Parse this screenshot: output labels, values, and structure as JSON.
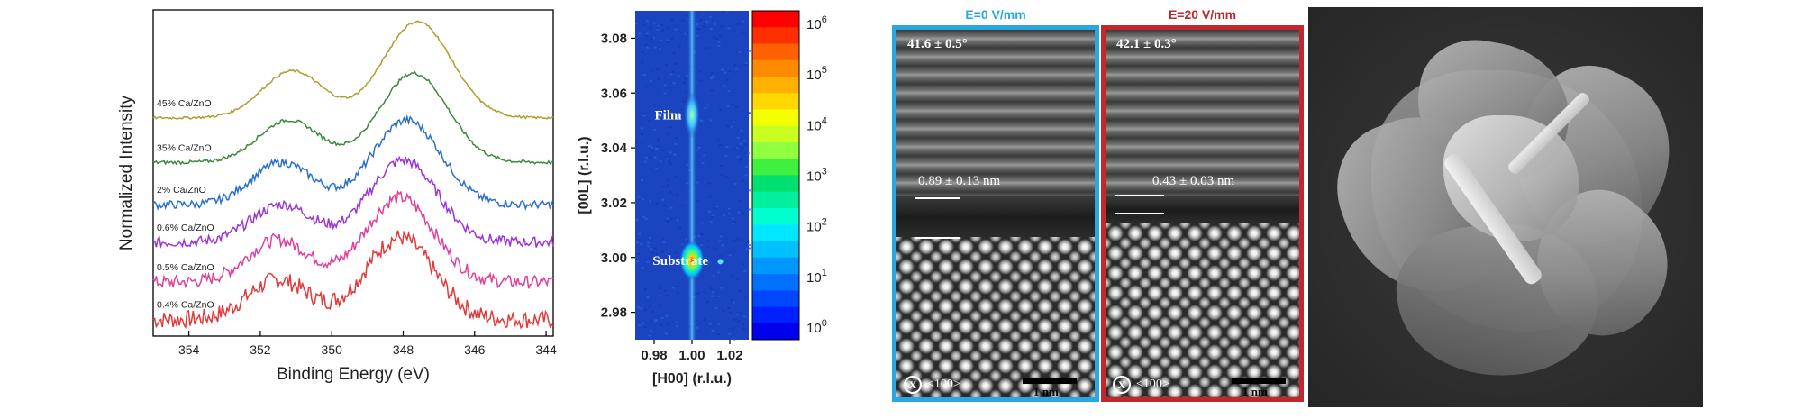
{
  "chart_data": [
    {
      "type": "line",
      "xlabel": "Binding Energy (eV)",
      "ylabel": "Normalized Intensity",
      "xlim": [
        355,
        343.8
      ],
      "x_reversed": true,
      "xticks": [
        354,
        352,
        350,
        348,
        346,
        344
      ],
      "grid": false,
      "series": [
        {
          "name": "0.4% Ca/ZnO",
          "color": "#e03a3a",
          "offset": 0.0,
          "noise": 0.075,
          "p1": [
            351.5,
            0.34
          ],
          "p2": [
            348.1,
            0.7
          ]
        },
        {
          "name": "0.5% Ca/ZnO",
          "color": "#e0409a",
          "offset": 0.32,
          "noise": 0.055,
          "p1": [
            351.5,
            0.36
          ],
          "p2": [
            348.1,
            0.72
          ]
        },
        {
          "name": "0.6% Ca/ZnO",
          "color": "#9a35d8",
          "offset": 0.66,
          "noise": 0.045,
          "p1": [
            351.4,
            0.32
          ],
          "p2": [
            348.0,
            0.7
          ]
        },
        {
          "name": "2% Ca/ZnO",
          "color": "#2a6fd0",
          "offset": 0.98,
          "noise": 0.035,
          "p1": [
            351.4,
            0.36
          ],
          "p2": [
            347.9,
            0.72
          ]
        },
        {
          "name": "35% Ca/ZnO",
          "color": "#3a8a3a",
          "offset": 1.34,
          "noise": 0.015,
          "p1": [
            351.2,
            0.36
          ],
          "p2": [
            347.7,
            0.76
          ]
        },
        {
          "name": "45% Ca/ZnO",
          "color": "#aaa030",
          "offset": 1.72,
          "noise": 0.01,
          "p1": [
            351.1,
            0.4
          ],
          "p2": [
            347.6,
            0.82
          ]
        }
      ]
    },
    {
      "type": "heatmap",
      "xlabel": "[H00] (r.l.u.)",
      "ylabel": "[00L] (r.l.u.)",
      "xlim": [
        0.97,
        1.03
      ],
      "ylim": [
        2.97,
        3.09
      ],
      "xticks": [
        "0.98",
        "1.00",
        "1.02"
      ],
      "yticks": [
        "2.98",
        "3.00",
        "3.02",
        "3.04",
        "3.06",
        "3.08"
      ],
      "annotations": [
        {
          "text": "Film",
          "x": 0.985,
          "y": 3.052
        },
        {
          "text": "Substrate",
          "x": 0.984,
          "y": 2.999
        }
      ],
      "peaks": [
        {
          "x": 1.0,
          "y": 2.999,
          "label": "Substrate"
        },
        {
          "x": 1.0,
          "y": 3.052,
          "label": "Film"
        }
      ],
      "colorbar": {
        "scale": "log",
        "ticks": [
          "10",
          "10",
          "10",
          "10",
          "10",
          "10",
          "10"
        ],
        "exponents": [
          "6",
          "5",
          "4",
          "3",
          "2",
          "1",
          "0"
        ],
        "colors": [
          "#ff0000",
          "#ff3000",
          "#ff6000",
          "#ff8a00",
          "#ffb000",
          "#ffd800",
          "#f4ff00",
          "#c8ff20",
          "#90ff40",
          "#40f040",
          "#00e070",
          "#00f0a0",
          "#00ffd0",
          "#00e8ff",
          "#00c0ff",
          "#0098ff",
          "#0070ff",
          "#0048ff",
          "#0020ff",
          "#0000ee"
        ]
      }
    }
  ],
  "stem": {
    "left": {
      "title": "E=0 V/mm",
      "title_color": "#29a8e0",
      "border_color": "#29a8e0",
      "angle": "41.6 ± 0.5°",
      "spacing": "0.89 ± 0.13 nm",
      "axis_symbol": "X",
      "axis_dir": "<100>",
      "scale_label": "1 nm"
    },
    "right": {
      "title": "E=20 V/mm",
      "title_color": "#c0282e",
      "border_color": "#c0282e",
      "angle": "42.1 ± 0.3°",
      "spacing": "0.43 ± 0.03 nm",
      "axis_symbol": "X",
      "axis_dir": "<100>",
      "scale_label": "1 nm"
    }
  }
}
